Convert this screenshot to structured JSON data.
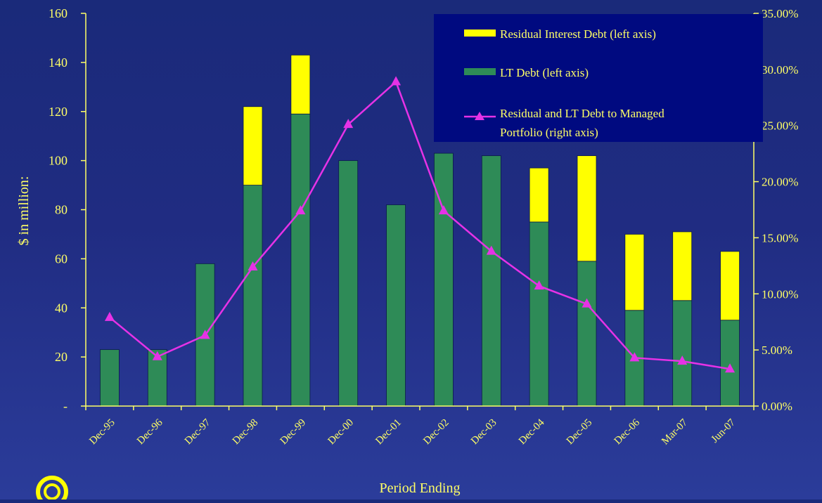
{
  "chart_data": {
    "type": "bar",
    "stacked": true,
    "categories": [
      "Dec-95",
      "Dec-96",
      "Dec-97",
      "Dec-98",
      "Dec-99",
      "Dec-00",
      "Dec-01",
      "Dec-02",
      "Dec-03",
      "Dec-04",
      "Dec-05",
      "Dec-06",
      "Mar-07",
      "Jun-07"
    ],
    "series": [
      {
        "name": "LT Debt (left axis)",
        "axis": "left",
        "type": "bar",
        "color": "#2e8b57",
        "values": [
          23,
          23,
          58,
          90,
          119,
          100,
          82,
          103,
          102,
          75,
          59,
          39,
          43,
          35
        ]
      },
      {
        "name": "Residual Interest Debt (left axis)",
        "axis": "left",
        "type": "bar",
        "color": "#ffff00",
        "values": [
          0,
          0,
          0,
          32,
          24,
          0,
          0,
          0,
          0,
          22,
          43,
          31,
          28,
          28
        ]
      },
      {
        "name": "Residual and LT Debt to Managed Portfolio (right axis)",
        "axis": "right",
        "type": "line",
        "color": "#e632e6",
        "marker": "triangle",
        "values": [
          0.079,
          0.044,
          0.063,
          0.124,
          0.174,
          0.251,
          0.289,
          0.174,
          0.138,
          0.107,
          0.091,
          0.043,
          0.04,
          0.033
        ]
      }
    ],
    "xlabel": "Period Ending",
    "ylabel": "$ in million:",
    "ylim": [
      0,
      160
    ],
    "y_ticks": [
      "-",
      "20",
      "40",
      "60",
      "80",
      "100",
      "120",
      "140",
      "160"
    ],
    "y2lim": [
      0,
      0.35
    ],
    "y2_ticks": [
      "0.00%",
      "5.00%",
      "10.00%",
      "15.00%",
      "20.00%",
      "25.00%",
      "30.00%",
      "35.00%"
    ],
    "grid": false,
    "legend_position": "top-right",
    "legend_order": [
      1,
      0,
      2
    ],
    "legend_labels": [
      "Residual Interest Debt (left axis)",
      "LT Debt (left axis)",
      "Residual and LT Debt to Managed",
      "Portfolio (right axis)"
    ],
    "colors": {
      "axis": "#ffff66",
      "text": "#ffff66",
      "legend_bg": "#000a80"
    }
  }
}
